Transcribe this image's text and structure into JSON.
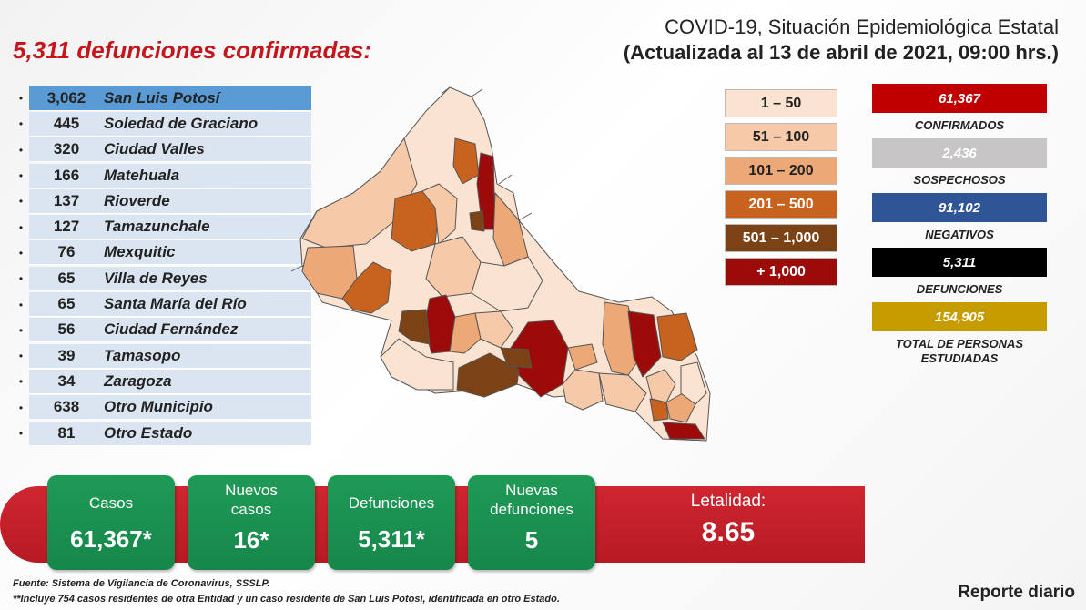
{
  "headline": "5,311 defunciones confirmadas:",
  "title": {
    "line1": "COVID-19, Situación Epidemiológica Estatal",
    "line2": "(Actualizada al 13 de abril de 2021, 09:00 hrs.)"
  },
  "municipalities": [
    {
      "value": "3,062",
      "name": "San Luis Potosí"
    },
    {
      "value": "445",
      "name": "Soledad de Graciano"
    },
    {
      "value": "320",
      "name": "Ciudad Valles"
    },
    {
      "value": "166",
      "name": "Matehuala"
    },
    {
      "value": "137",
      "name": "Rioverde"
    },
    {
      "value": "127",
      "name": "Tamazunchale"
    },
    {
      "value": "76",
      "name": "Mexquitic"
    },
    {
      "value": "65",
      "name": "Villa de Reyes"
    },
    {
      "value": "65",
      "name": "Santa María del Río"
    },
    {
      "value": "56",
      "name": "Ciudad Fernández"
    },
    {
      "value": "39",
      "name": "Tamasopo"
    },
    {
      "value": "34",
      "name": "Zaragoza"
    },
    {
      "value": "638",
      "name": "Otro Municipio"
    },
    {
      "value": "81",
      "name": "Otro Estado"
    }
  ],
  "legend": [
    {
      "label": "1 – 50",
      "color": "#fbe3d2",
      "text_color": "#222222"
    },
    {
      "label": "51 – 100",
      "color": "#f6c9a8",
      "text_color": "#222222"
    },
    {
      "label": "101 – 200",
      "color": "#eda877",
      "text_color": "#222222"
    },
    {
      "label": "201 – 500",
      "color": "#c7631f",
      "text_color": "#ffffff"
    },
    {
      "label": "501 – 1,000",
      "color": "#7a4215",
      "text_color": "#ffffff"
    },
    {
      "label": "+ 1,000",
      "color": "#9c0a0a",
      "text_color": "#ffffff"
    }
  ],
  "stats": [
    {
      "value": "61,367",
      "label": "CONFIRMADOS",
      "color": "#c00000"
    },
    {
      "value": "2,436",
      "label": "SOSPECHOSOS",
      "color": "#c7c5c6"
    },
    {
      "value": "91,102",
      "label": "NEGATIVOS",
      "color": "#2f5597"
    },
    {
      "value": "5,311",
      "label": "DEFUNCIONES",
      "color": "#000000"
    },
    {
      "value": "154,905",
      "label": "TOTAL DE PERSONAS ESTUDIADAS",
      "color": "#c69c00"
    }
  ],
  "cards": [
    {
      "label": "Casos",
      "value": "61,367*"
    },
    {
      "label": "Nuevos casos",
      "value": "16*"
    },
    {
      "label": "Defunciones",
      "value": "5,311*"
    },
    {
      "label": "Nuevas defunciones",
      "value": "5"
    }
  ],
  "letalidad": {
    "label": "Letalidad:",
    "value": "8.65"
  },
  "footer": {
    "source": "Fuente: Sistema de Vigilancia de Coronavirus, SSSLP.",
    "note": "**Incluye 754 casos residentes de otra Entidad y un caso residente de San Luis Potosí, identificada en otro Estado."
  },
  "report_label": "Reporte diario"
}
